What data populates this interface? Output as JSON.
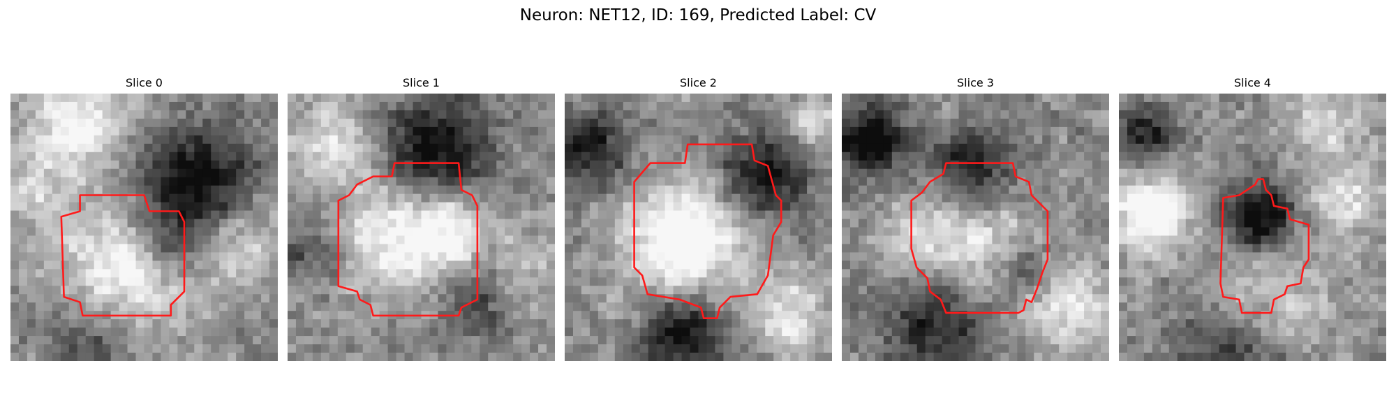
{
  "figure": {
    "title": "Neuron: NET12, ID: 169, Predicted Label: CV"
  },
  "colors": {
    "contour": "#ff1a1a",
    "background": "#ffffff"
  },
  "slices": [
    {
      "label": "Slice 0",
      "contour_color": "#ff1a1a",
      "bright_spots": [
        [
          0.25,
          0.1,
          0.2,
          0.45
        ],
        [
          0.4,
          0.7,
          0.25,
          0.55
        ],
        [
          0.85,
          0.55,
          0.18,
          0.35
        ],
        [
          0.1,
          0.35,
          0.12,
          0.25
        ]
      ],
      "dark_spots": [
        [
          0.7,
          0.35,
          0.22,
          0.6
        ],
        [
          0.3,
          0.88,
          0.2,
          0.4
        ],
        [
          0.6,
          0.58,
          0.12,
          0.3
        ]
      ],
      "contour": [
        [
          0.26,
          0.38
        ],
        [
          0.5,
          0.38
        ],
        [
          0.52,
          0.44
        ],
        [
          0.63,
          0.44
        ],
        [
          0.65,
          0.48
        ],
        [
          0.65,
          0.74
        ],
        [
          0.6,
          0.79
        ],
        [
          0.6,
          0.83
        ],
        [
          0.27,
          0.83
        ],
        [
          0.26,
          0.78
        ],
        [
          0.2,
          0.76
        ],
        [
          0.19,
          0.46
        ],
        [
          0.26,
          0.44
        ]
      ]
    },
    {
      "label": "Slice 1",
      "contour_color": "#ff1a1a",
      "bright_spots": [
        [
          0.4,
          0.52,
          0.22,
          0.45
        ],
        [
          0.62,
          0.52,
          0.14,
          0.4
        ],
        [
          0.18,
          0.18,
          0.14,
          0.35
        ],
        [
          0.85,
          0.7,
          0.15,
          0.3
        ]
      ],
      "dark_spots": [
        [
          0.55,
          0.22,
          0.2,
          0.55
        ],
        [
          0.75,
          0.75,
          0.16,
          0.35
        ],
        [
          0.1,
          0.6,
          0.12,
          0.25
        ]
      ],
      "contour": [
        [
          0.32,
          0.31
        ],
        [
          0.39,
          0.31
        ],
        [
          0.4,
          0.26
        ],
        [
          0.64,
          0.26
        ],
        [
          0.65,
          0.36
        ],
        [
          0.69,
          0.38
        ],
        [
          0.71,
          0.42
        ],
        [
          0.71,
          0.77
        ],
        [
          0.65,
          0.8
        ],
        [
          0.64,
          0.83
        ],
        [
          0.32,
          0.83
        ],
        [
          0.31,
          0.79
        ],
        [
          0.27,
          0.77
        ],
        [
          0.26,
          0.74
        ],
        [
          0.19,
          0.72
        ],
        [
          0.19,
          0.4
        ],
        [
          0.23,
          0.38
        ],
        [
          0.26,
          0.34
        ]
      ]
    },
    {
      "label": "Slice 2",
      "contour_color": "#ff1a1a",
      "bright_spots": [
        [
          0.45,
          0.55,
          0.22,
          0.6
        ],
        [
          0.85,
          0.82,
          0.14,
          0.35
        ],
        [
          0.92,
          0.12,
          0.1,
          0.3
        ]
      ],
      "dark_spots": [
        [
          0.75,
          0.3,
          0.16,
          0.55
        ],
        [
          0.45,
          0.9,
          0.15,
          0.55
        ],
        [
          0.1,
          0.22,
          0.14,
          0.45
        ]
      ],
      "contour": [
        [
          0.46,
          0.19
        ],
        [
          0.7,
          0.19
        ],
        [
          0.71,
          0.25
        ],
        [
          0.76,
          0.27
        ],
        [
          0.79,
          0.38
        ],
        [
          0.81,
          0.4
        ],
        [
          0.81,
          0.48
        ],
        [
          0.78,
          0.53
        ],
        [
          0.76,
          0.68
        ],
        [
          0.72,
          0.75
        ],
        [
          0.62,
          0.76
        ],
        [
          0.58,
          0.8
        ],
        [
          0.57,
          0.84
        ],
        [
          0.52,
          0.84
        ],
        [
          0.51,
          0.8
        ],
        [
          0.43,
          0.77
        ],
        [
          0.31,
          0.75
        ],
        [
          0.29,
          0.68
        ],
        [
          0.26,
          0.65
        ],
        [
          0.26,
          0.33
        ],
        [
          0.32,
          0.26
        ],
        [
          0.45,
          0.26
        ]
      ]
    },
    {
      "label": "Slice 3",
      "contour_color": "#ff1a1a",
      "bright_spots": [
        [
          0.5,
          0.55,
          0.2,
          0.35
        ],
        [
          0.85,
          0.8,
          0.15,
          0.4
        ],
        [
          0.25,
          0.55,
          0.12,
          0.25
        ]
      ],
      "dark_spots": [
        [
          0.1,
          0.18,
          0.14,
          0.55
        ],
        [
          0.5,
          0.28,
          0.15,
          0.45
        ],
        [
          0.35,
          0.88,
          0.2,
          0.4
        ],
        [
          0.7,
          0.65,
          0.1,
          0.25
        ]
      ],
      "contour": [
        [
          0.39,
          0.26
        ],
        [
          0.64,
          0.26
        ],
        [
          0.65,
          0.31
        ],
        [
          0.7,
          0.33
        ],
        [
          0.71,
          0.38
        ],
        [
          0.77,
          0.44
        ],
        [
          0.77,
          0.62
        ],
        [
          0.75,
          0.67
        ],
        [
          0.73,
          0.73
        ],
        [
          0.71,
          0.78
        ],
        [
          0.69,
          0.77
        ],
        [
          0.68,
          0.81
        ],
        [
          0.66,
          0.82
        ],
        [
          0.39,
          0.82
        ],
        [
          0.37,
          0.77
        ],
        [
          0.33,
          0.74
        ],
        [
          0.32,
          0.69
        ],
        [
          0.28,
          0.65
        ],
        [
          0.26,
          0.58
        ],
        [
          0.26,
          0.4
        ],
        [
          0.3,
          0.37
        ],
        [
          0.33,
          0.33
        ],
        [
          0.38,
          0.3
        ]
      ]
    },
    {
      "label": "Slice 4",
      "contour_color": "#ff1a1a",
      "bright_spots": [
        [
          0.12,
          0.45,
          0.15,
          0.55
        ],
        [
          0.85,
          0.4,
          0.12,
          0.4
        ],
        [
          0.55,
          0.8,
          0.22,
          0.4
        ],
        [
          0.75,
          0.1,
          0.15,
          0.3
        ]
      ],
      "dark_spots": [
        [
          0.52,
          0.46,
          0.14,
          0.55
        ],
        [
          0.45,
          0.95,
          0.22,
          0.45
        ],
        [
          0.1,
          0.15,
          0.12,
          0.4
        ]
      ],
      "contour": [
        [
          0.52,
          0.32
        ],
        [
          0.54,
          0.32
        ],
        [
          0.55,
          0.36
        ],
        [
          0.57,
          0.38
        ],
        [
          0.58,
          0.42
        ],
        [
          0.63,
          0.43
        ],
        [
          0.64,
          0.47
        ],
        [
          0.71,
          0.49
        ],
        [
          0.71,
          0.62
        ],
        [
          0.69,
          0.65
        ],
        [
          0.68,
          0.71
        ],
        [
          0.63,
          0.72
        ],
        [
          0.62,
          0.75
        ],
        [
          0.58,
          0.77
        ],
        [
          0.57,
          0.82
        ],
        [
          0.46,
          0.82
        ],
        [
          0.45,
          0.77
        ],
        [
          0.39,
          0.76
        ],
        [
          0.38,
          0.71
        ],
        [
          0.39,
          0.39
        ],
        [
          0.45,
          0.38
        ],
        [
          0.48,
          0.36
        ],
        [
          0.51,
          0.34
        ]
      ]
    }
  ]
}
